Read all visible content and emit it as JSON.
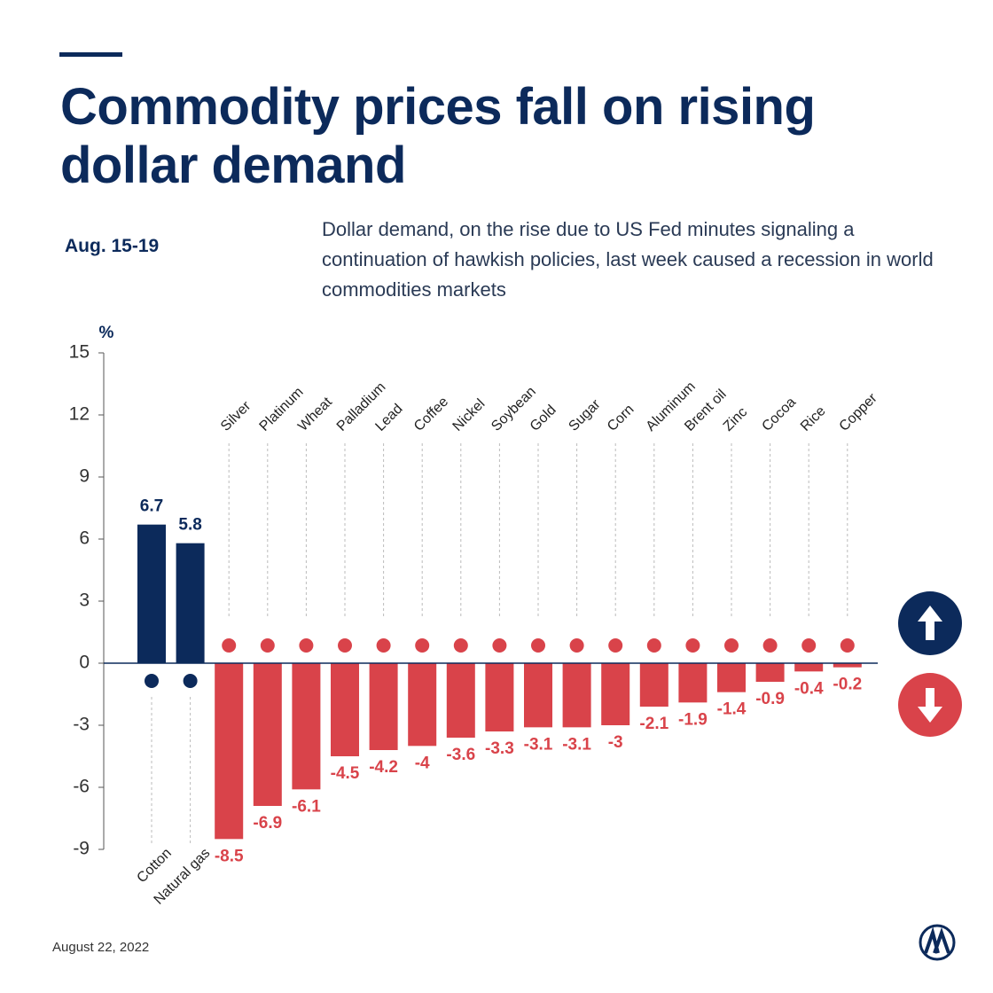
{
  "chart_data": {
    "type": "bar",
    "title": "Commodity prices fall on rising dollar demand",
    "period": "Aug. 15-19",
    "subtitle": "Dollar demand, on the rise due to US Fed minutes signaling a continuation of hawkish policies, last week caused a recession in world commodities markets",
    "y_unit": "%",
    "date": "August 22, 2022",
    "categories": [
      "Cotton",
      "Natural gas",
      "Silver",
      "Platinum",
      "Wheat",
      "Palladium",
      "Lead",
      "Coffee",
      "Nickel",
      "Soybean",
      "Gold",
      "Sugar",
      "Corn",
      "Aluminum",
      "Brent oil",
      "Zinc",
      "Cocoa",
      "Rice",
      "Copper"
    ],
    "values": [
      6.7,
      5.8,
      -8.5,
      -6.9,
      -6.1,
      -4.5,
      -4.2,
      -4,
      -3.6,
      -3.3,
      -3.1,
      -3.1,
      -3,
      -2.1,
      -1.9,
      -1.4,
      -0.9,
      -0.4,
      -0.2
    ],
    "colors": {
      "positive": "#0c2a5b",
      "negative": "#d9434a"
    },
    "ylim": [
      -9,
      15
    ],
    "yticks": [
      15,
      12,
      9,
      6,
      3,
      0,
      -3,
      -6,
      -9
    ]
  }
}
